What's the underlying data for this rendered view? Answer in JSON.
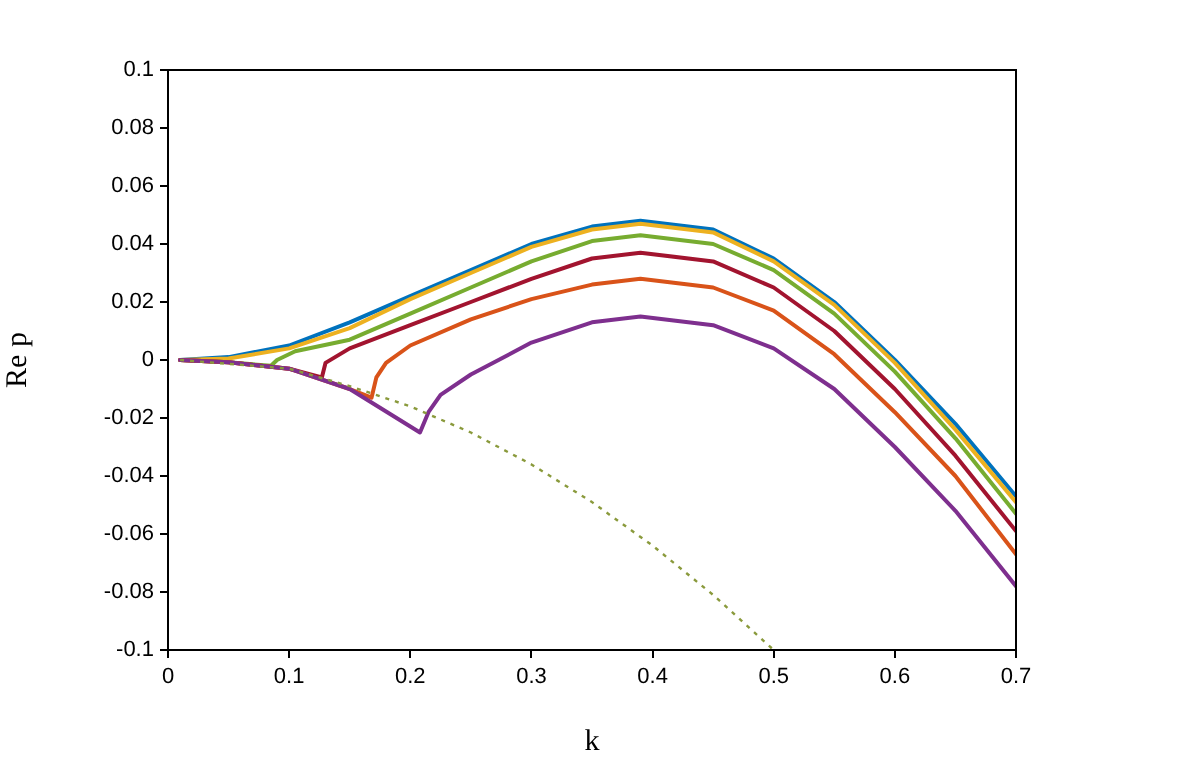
{
  "chart_data": {
    "type": "line",
    "xlabel": "k",
    "ylabel": "Re p",
    "xlim": [
      0,
      0.7
    ],
    "ylim": [
      -0.1,
      0.1
    ],
    "xticks": [
      0,
      0.1,
      0.2,
      0.3,
      0.4,
      0.5,
      0.6,
      0.7
    ],
    "yticks": [
      -0.1,
      -0.08,
      -0.06,
      -0.04,
      -0.02,
      0,
      0.02,
      0.04,
      0.06,
      0.08,
      0.1
    ],
    "grid": false,
    "legend": false,
    "marker": "none",
    "line_style": "solid",
    "series": [
      {
        "color": "#0072bd",
        "x": [
          0.01,
          0.05,
          0.1,
          0.15,
          0.2,
          0.25,
          0.3,
          0.35,
          0.39,
          0.45,
          0.5,
          0.55,
          0.6,
          0.65,
          0.7
        ],
        "values": [
          0,
          0.001,
          0.005,
          0.013,
          0.022,
          0.031,
          0.04,
          0.046,
          0.048,
          0.045,
          0.035,
          0.02,
          0.0,
          -0.022,
          -0.047
        ]
      },
      {
        "color": "#edb120",
        "x": [
          0.01,
          0.05,
          0.1,
          0.15,
          0.2,
          0.25,
          0.3,
          0.35,
          0.39,
          0.45,
          0.5,
          0.55,
          0.6,
          0.65,
          0.7
        ],
        "values": [
          0,
          0.0005,
          0.004,
          0.011,
          0.021,
          0.03,
          0.039,
          0.045,
          0.047,
          0.044,
          0.034,
          0.019,
          -0.001,
          -0.024,
          -0.049
        ]
      },
      {
        "color": "#77ac30",
        "x": [
          0.01,
          0.05,
          0.085,
          0.09,
          0.105,
          0.15,
          0.2,
          0.25,
          0.3,
          0.35,
          0.39,
          0.45,
          0.5,
          0.55,
          0.6,
          0.65,
          0.7
        ],
        "values": [
          0,
          -0.0008,
          -0.002,
          0.0,
          0.003,
          0.007,
          0.016,
          0.025,
          0.034,
          0.041,
          0.043,
          0.04,
          0.031,
          0.016,
          -0.004,
          -0.027,
          -0.053
        ]
      },
      {
        "color": "#a2142f",
        "x": [
          0.01,
          0.05,
          0.1,
          0.127,
          0.13,
          0.15,
          0.2,
          0.25,
          0.3,
          0.35,
          0.39,
          0.45,
          0.5,
          0.55,
          0.6,
          0.65,
          0.7
        ],
        "values": [
          0,
          -0.0008,
          -0.003,
          -0.006,
          -0.001,
          0.004,
          0.012,
          0.02,
          0.028,
          0.035,
          0.037,
          0.034,
          0.025,
          0.01,
          -0.01,
          -0.033,
          -0.059
        ]
      },
      {
        "color": "#d95319",
        "x": [
          0.01,
          0.05,
          0.1,
          0.15,
          0.168,
          0.172,
          0.18,
          0.2,
          0.25,
          0.3,
          0.35,
          0.39,
          0.45,
          0.5,
          0.55,
          0.6,
          0.65,
          0.7
        ],
        "values": [
          0,
          -0.0008,
          -0.003,
          -0.01,
          -0.013,
          -0.006,
          -0.001,
          0.005,
          0.014,
          0.021,
          0.026,
          0.028,
          0.025,
          0.017,
          0.002,
          -0.018,
          -0.04,
          -0.067
        ]
      },
      {
        "color": "#7e2f8e",
        "x": [
          0.01,
          0.05,
          0.1,
          0.15,
          0.208,
          0.215,
          0.225,
          0.25,
          0.3,
          0.35,
          0.39,
          0.45,
          0.5,
          0.55,
          0.6,
          0.65,
          0.7
        ],
        "values": [
          0,
          -0.0008,
          -0.003,
          -0.01,
          -0.025,
          -0.018,
          -0.012,
          -0.005,
          0.006,
          0.013,
          0.015,
          0.012,
          0.004,
          -0.01,
          -0.03,
          -0.052,
          -0.078
        ]
      },
      {
        "color": "#8a9a3c",
        "line_style": "dotted",
        "x": [
          0.01,
          0.1,
          0.15,
          0.2,
          0.25,
          0.3,
          0.35,
          0.4,
          0.45,
          0.5
        ],
        "values": [
          0,
          -0.003,
          -0.009,
          -0.016,
          -0.025,
          -0.036,
          -0.049,
          -0.064,
          -0.081,
          -0.1
        ]
      }
    ]
  }
}
